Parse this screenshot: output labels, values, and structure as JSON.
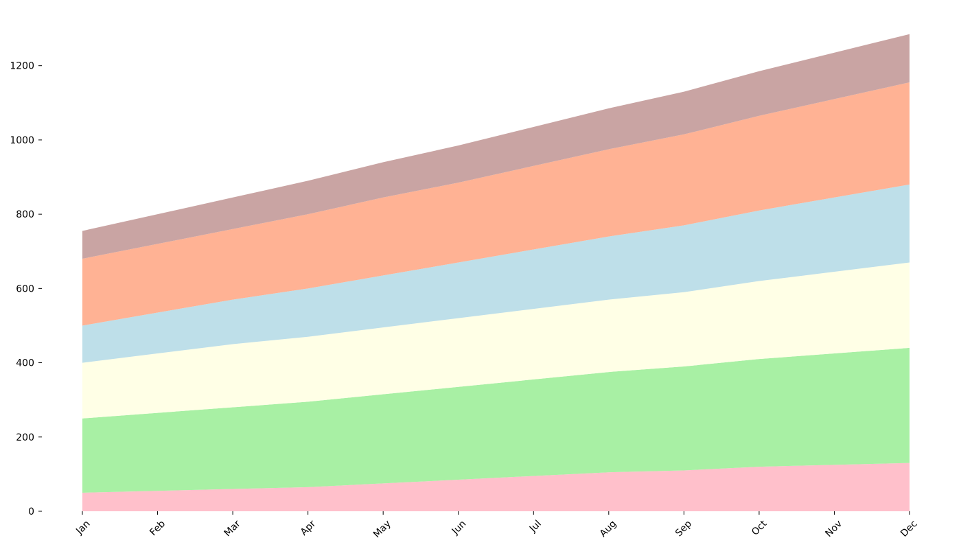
{
  "chart_data": {
    "type": "area",
    "stacked": true,
    "categories": [
      "Jan",
      "Feb",
      "Mar",
      "Apr",
      "May",
      "Jun",
      "Jul",
      "Aug",
      "Sep",
      "Oct",
      "Nov",
      "Dec"
    ],
    "series": [
      {
        "color": "#ffc0cb",
        "values": [
          50,
          55,
          60,
          65,
          75,
          85,
          95,
          105,
          110,
          120,
          125,
          130
        ]
      },
      {
        "color": "#a8f0a4",
        "values": [
          200,
          210,
          220,
          230,
          240,
          250,
          260,
          270,
          280,
          290,
          300,
          310
        ]
      },
      {
        "color": "#ffffe6",
        "values": [
          150,
          160,
          170,
          175,
          180,
          185,
          190,
          195,
          200,
          210,
          220,
          230
        ]
      },
      {
        "color": "#bedfe9",
        "values": [
          100,
          110,
          120,
          130,
          140,
          150,
          160,
          170,
          180,
          190,
          200,
          210
        ]
      },
      {
        "color": "#ffb294",
        "values": [
          180,
          185,
          190,
          200,
          210,
          215,
          225,
          235,
          245,
          255,
          265,
          275
        ]
      },
      {
        "color": "#c9a4a3",
        "values": [
          75,
          80,
          85,
          90,
          95,
          100,
          105,
          110,
          115,
          120,
          125,
          130
        ]
      }
    ],
    "ylim": [
      0,
      1290
    ],
    "yticks": [
      0,
      200,
      400,
      600,
      800,
      1000,
      1200
    ],
    "title": "",
    "xlabel": "",
    "ylabel": "",
    "grid": false
  }
}
